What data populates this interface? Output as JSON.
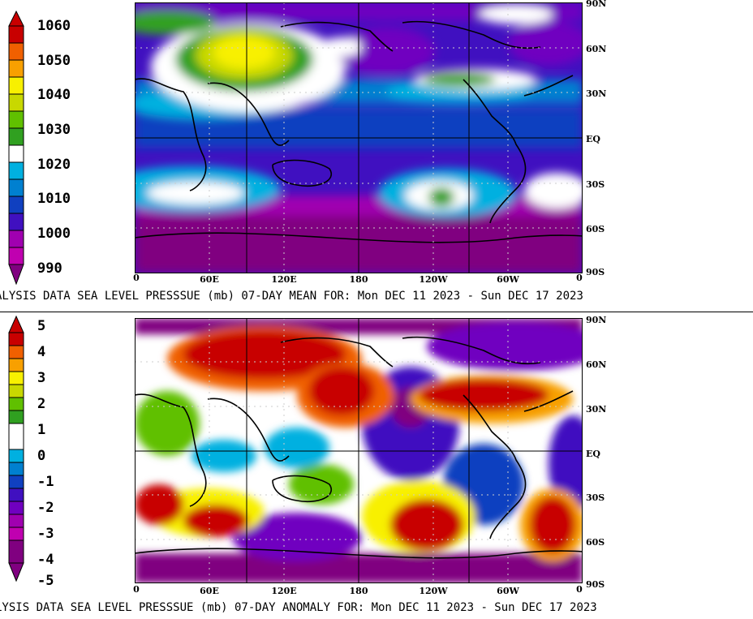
{
  "panels": [
    {
      "id": "mean",
      "colorbar": {
        "labels": [
          "1060",
          "1050",
          "1040",
          "1030",
          "1020",
          "1010",
          "1000",
          "990"
        ],
        "colors": [
          "#c80000",
          "#f06000",
          "#f8a000",
          "#f8f000",
          "#c8d800",
          "#60c000",
          "#30a020",
          "#ffffff",
          "#00b0e0",
          "#0080d0",
          "#1040c0",
          "#4010c0",
          "#7000c0",
          "#a000b0",
          "#c000b0",
          "#800080"
        ]
      },
      "lat_labels": [
        "90N",
        "60N",
        "30N",
        "EQ",
        "30S",
        "60S",
        "90S"
      ],
      "lon_labels": [
        "0",
        "60E",
        "120E",
        "180",
        "120W",
        "60W",
        "0"
      ],
      "title": "ALYSIS DATA   SEA LEVEL PRESSSUE (mb) 07-DAY MEAN FOR: Mon DEC 11 2023 - Sun DEC 17 2023"
    },
    {
      "id": "anomaly",
      "colorbar": {
        "labels": [
          "5",
          "4",
          "3",
          "2",
          "1",
          "0",
          "-1",
          "-2",
          "-3",
          "-4",
          "-5"
        ],
        "colors": [
          "#c80000",
          "#f06000",
          "#f8a000",
          "#f8f000",
          "#c8d800",
          "#60c000",
          "#30a020",
          "#ffffff",
          "#00b0e0",
          "#0080d0",
          "#1040c0",
          "#4010c0",
          "#7000c0",
          "#a000b0",
          "#c000b0",
          "#800080"
        ]
      },
      "lat_labels": [
        "90N",
        "60N",
        "30N",
        "EQ",
        "30S",
        "60S",
        "90S"
      ],
      "lon_labels": [
        "0",
        "60E",
        "120E",
        "180",
        "120W",
        "60W",
        "0"
      ],
      "title": "LYSIS DATA   SEA LEVEL PRESSSUE (mb) 07-DAY ANOMALY FOR: Mon DEC 11 2023 - Sun DEC 17 2023"
    }
  ]
}
